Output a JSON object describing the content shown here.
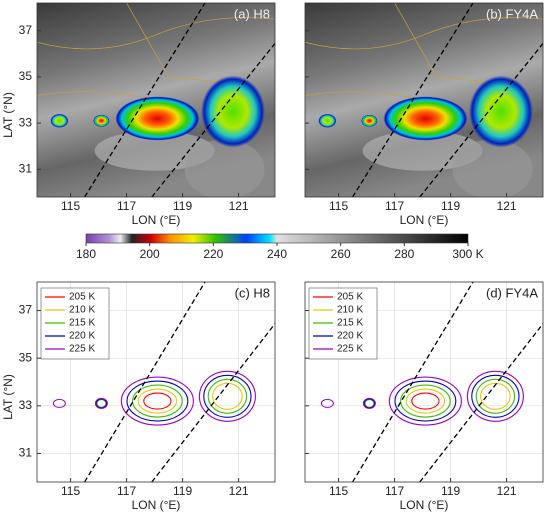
{
  "chart_data": [
    {
      "type": "image",
      "title": "(a) H8",
      "xlabel": "LON (°E)",
      "ylabel": "LAT (°N)",
      "xlim": [
        113.8,
        122.3
      ],
      "ylim": [
        29.8,
        38.2
      ],
      "xticks": [
        115,
        117,
        119,
        121
      ],
      "yticks": [
        31,
        33,
        35,
        37
      ],
      "show_ytick_labels": true
    },
    {
      "type": "image",
      "title": "(b) FY4A",
      "xlabel": "LON (°E)",
      "xlim": [
        113.8,
        122.3
      ],
      "ylim": [
        29.8,
        38.2
      ],
      "xticks": [
        115,
        117,
        119,
        121
      ],
      "yticks": [
        31,
        33,
        35,
        37
      ],
      "show_ytick_labels": false
    },
    {
      "type": "colorbar",
      "clim": [
        180,
        300
      ],
      "ticks": [
        180,
        200,
        220,
        240,
        260,
        280,
        {
          "value": 300,
          "label": "300 K"
        }
      ]
    },
    {
      "type": "contour",
      "title": "(c) H8",
      "xlabel": "LON (°E)",
      "ylabel": "LAT (°N)",
      "xlim": [
        113.8,
        122.3
      ],
      "ylim": [
        29.8,
        38.2
      ],
      "xticks": [
        115,
        117,
        119,
        121
      ],
      "yticks": [
        31,
        33,
        35,
        37
      ],
      "show_ytick_labels": true,
      "grid": true,
      "series": [
        {
          "name": "205 K",
          "color": "#ff0000"
        },
        {
          "name": "210 K",
          "color": "#e6c800"
        },
        {
          "name": "215 K",
          "color": "#3cbf00"
        },
        {
          "name": "220 K",
          "color": "#0000cc"
        },
        {
          "name": "225 K",
          "color": "#a000c0"
        }
      ]
    },
    {
      "type": "contour",
      "title": "(d) FY4A",
      "xlabel": "LON (°E)",
      "xlim": [
        113.8,
        122.3
      ],
      "ylim": [
        29.8,
        38.2
      ],
      "xticks": [
        115,
        117,
        119,
        121
      ],
      "yticks": [
        31,
        33,
        35,
        37
      ],
      "show_ytick_labels": false,
      "grid": true,
      "series": [
        {
          "name": "205 K",
          "color": "#ff0000"
        },
        {
          "name": "210 K",
          "color": "#e6c800"
        },
        {
          "name": "215 K",
          "color": "#3cbf00"
        },
        {
          "name": "220 K",
          "color": "#0000cc"
        },
        {
          "name": "225 K",
          "color": "#a000c0"
        }
      ]
    }
  ]
}
